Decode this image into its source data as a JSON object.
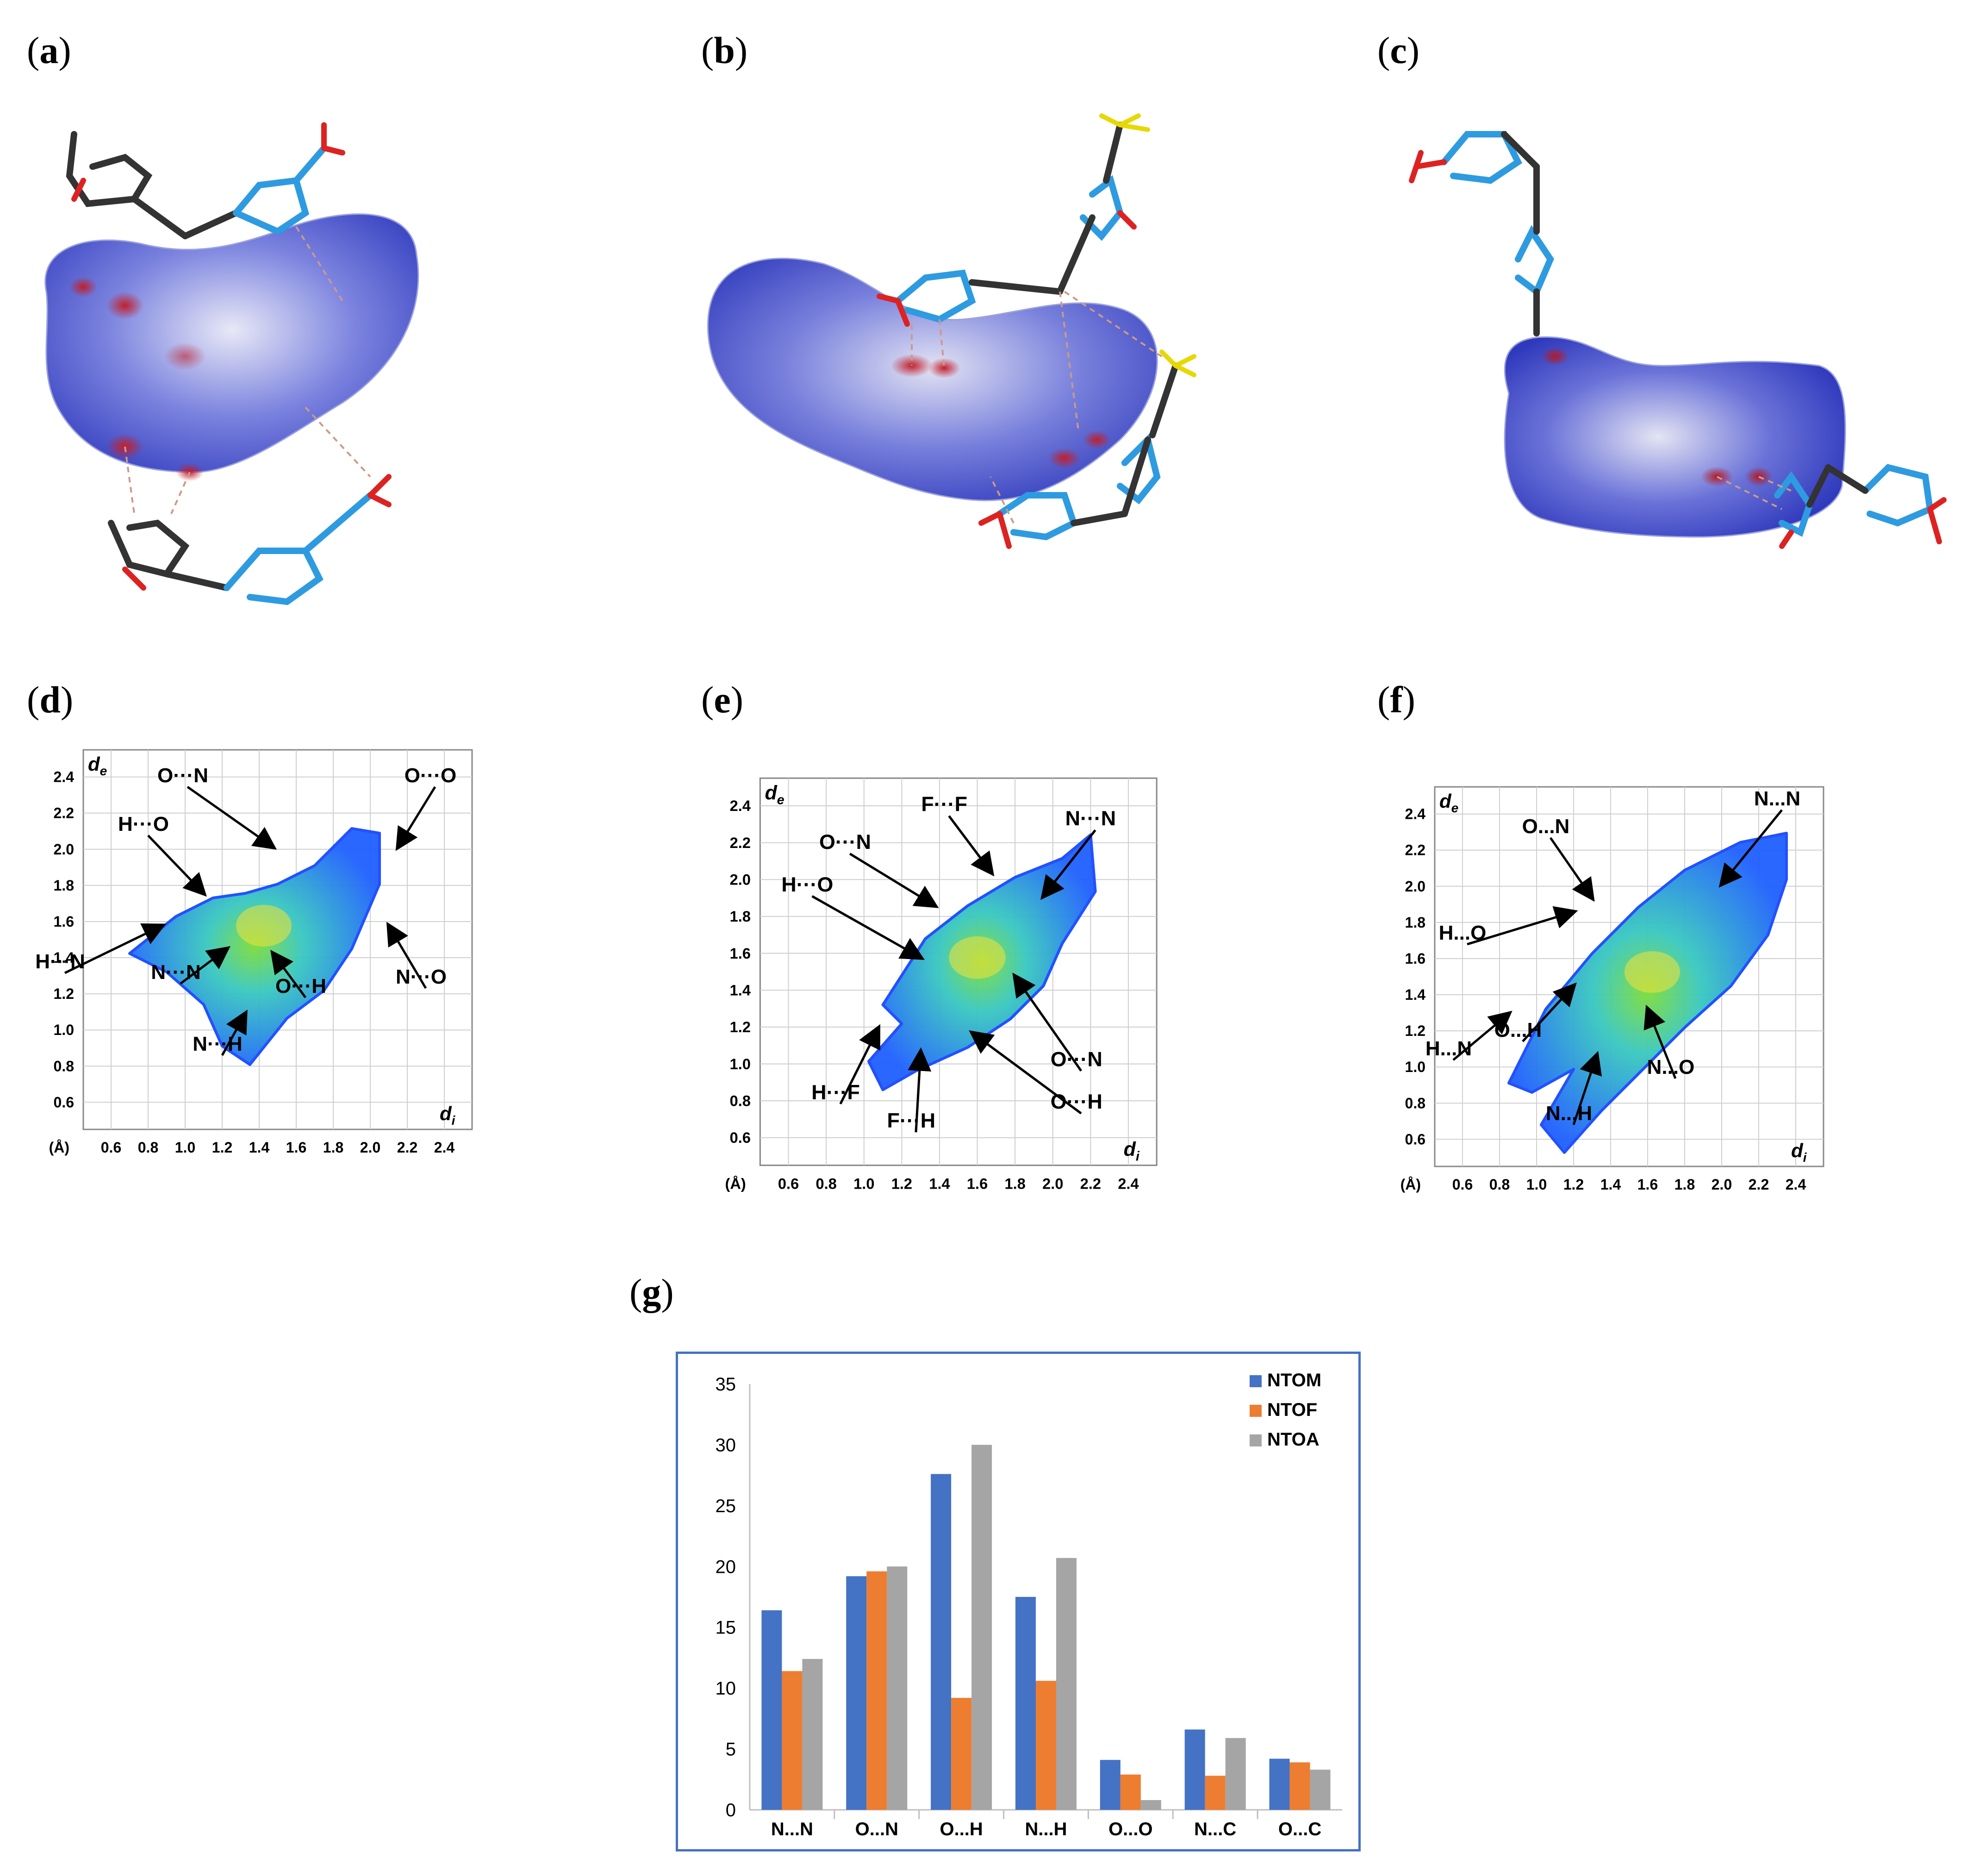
{
  "panels": {
    "a": "a",
    "b": "b",
    "c": "c",
    "d": "d",
    "e": "e",
    "f": "f",
    "g": "g"
  },
  "fingerprint_plots": [
    {
      "id": "d",
      "y_axis_label": "d",
      "y_axis_sub": "e",
      "x_axis_label": "d",
      "x_axis_sub": "i",
      "unit": "(Å)",
      "y_ticks": [
        "2.4",
        "2.2",
        "2.0",
        "1.8",
        "1.6",
        "1.4",
        "1.2",
        "1.0",
        "0.8",
        "0.6"
      ],
      "x_ticks": [
        "0.6",
        "0.8",
        "1.0",
        "1.2",
        "1.4",
        "1.6",
        "1.8",
        "2.0",
        "2.2",
        "2.4"
      ],
      "annotations": [
        "O···N",
        "O···O",
        "H···O",
        "H···N",
        "N···N",
        "N···O",
        "O···H",
        "N···H"
      ]
    },
    {
      "id": "e",
      "y_axis_label": "d",
      "y_axis_sub": "e",
      "x_axis_label": "d",
      "x_axis_sub": "i",
      "unit": "(Å)",
      "y_ticks": [
        "2.4",
        "2.2",
        "2.0",
        "1.8",
        "1.6",
        "1.4",
        "1.2",
        "1.0",
        "0.8",
        "0.6"
      ],
      "x_ticks": [
        "0.6",
        "0.8",
        "1.0",
        "1.2",
        "1.4",
        "1.6",
        "1.8",
        "2.0",
        "2.2",
        "2.4"
      ],
      "annotations": [
        "F···F",
        "N···N",
        "O···N",
        "H···O",
        "H···F",
        "F···H",
        "O···N",
        "O···H"
      ]
    },
    {
      "id": "f",
      "y_axis_label": "d",
      "y_axis_sub": "e",
      "x_axis_label": "d",
      "x_axis_sub": "i",
      "unit": "(Å)",
      "y_ticks": [
        "2.4",
        "2.2",
        "2.0",
        "1.8",
        "1.6",
        "1.4",
        "1.2",
        "1.0",
        "0.8",
        "0.6"
      ],
      "x_ticks": [
        "0.6",
        "0.8",
        "1.0",
        "1.2",
        "1.4",
        "1.6",
        "1.8",
        "2.0",
        "2.2",
        "2.4"
      ],
      "annotations": [
        "N...N",
        "O...N",
        "H...O",
        "H...N",
        "O...H",
        "N...O",
        "N...H"
      ]
    }
  ],
  "colors": {
    "ntom": "#4472C4",
    "ntof": "#ED7D31",
    "ntoa": "#A5A5A5",
    "chart_border": "#4472C4",
    "surface_blue": "#5560d8",
    "scatter_blue": "#1f5fff",
    "scatter_green": "#7ddc3a"
  },
  "chart_data": {
    "type": "bar",
    "categories": [
      "N...N",
      "O...N",
      "O...H",
      "N...H",
      "O...O",
      "N...C",
      "O...C"
    ],
    "series": [
      {
        "name": "NTOM",
        "values": [
          16.4,
          19.2,
          27.6,
          17.5,
          4.1,
          6.6,
          4.2
        ]
      },
      {
        "name": "NTOF",
        "values": [
          11.4,
          19.6,
          9.2,
          10.6,
          2.9,
          2.8,
          3.9
        ]
      },
      {
        "name": "NTOA",
        "values": [
          12.4,
          20.0,
          30.0,
          20.7,
          0.8,
          5.9,
          3.3
        ]
      }
    ],
    "y_ticks": [
      "0",
      "5",
      "10",
      "15",
      "20",
      "25",
      "30",
      "35"
    ],
    "ylim": [
      0,
      35
    ],
    "legend_position": "top-right",
    "title": "",
    "xlabel": "",
    "ylabel": ""
  }
}
